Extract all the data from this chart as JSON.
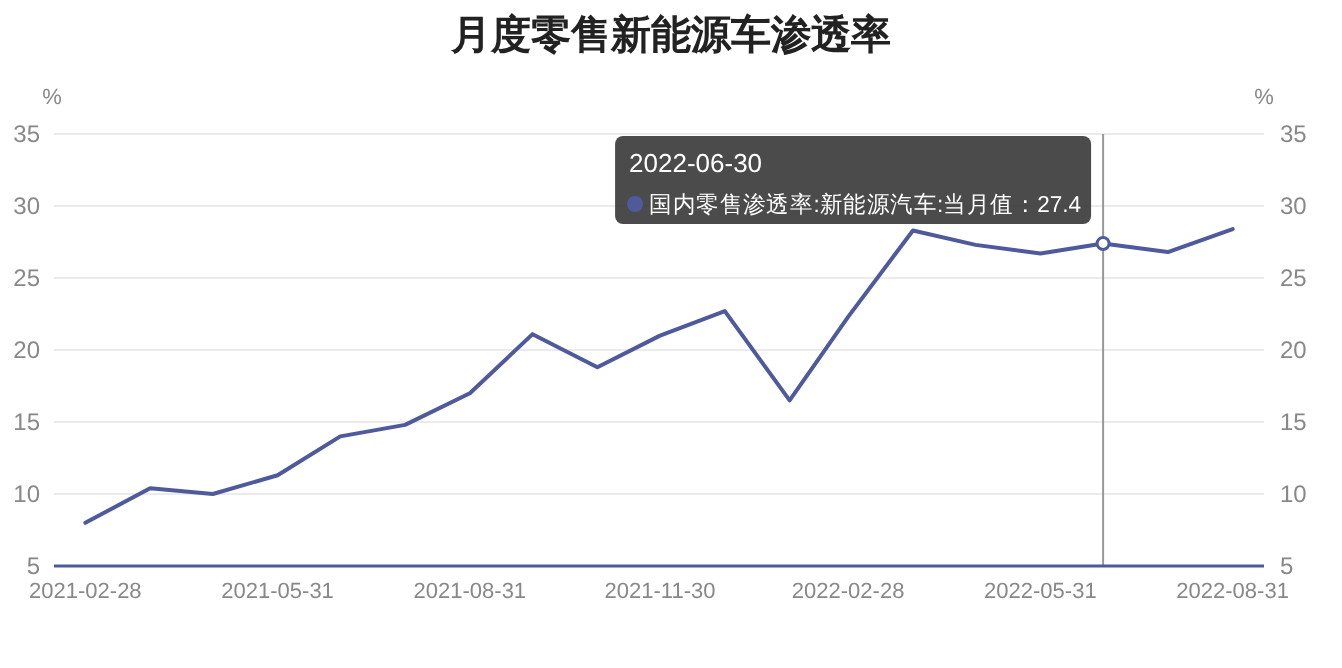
{
  "chart_data": {
    "type": "line",
    "title": "月度零售新能源车渗透率",
    "ylabel": "%",
    "y2label": "%",
    "x": [
      "2021-02-28",
      "2021-03-31",
      "2021-04-30",
      "2021-05-31",
      "2021-06-30",
      "2021-07-31",
      "2021-08-31",
      "2021-09-30",
      "2021-10-31",
      "2021-11-30",
      "2021-12-31",
      "2022-01-31",
      "2022-02-28",
      "2022-03-31",
      "2022-04-30",
      "2022-05-31",
      "2022-06-30",
      "2022-07-31",
      "2022-08-31"
    ],
    "series": [
      {
        "color": "#4e5a9c",
        "values": [
          8.0,
          10.4,
          10.0,
          11.3,
          14.0,
          14.8,
          17.0,
          21.1,
          18.8,
          21.0,
          22.7,
          16.5,
          22.3,
          28.3,
          27.3,
          26.7,
          27.4,
          26.8,
          28.4
        ]
      }
    ],
    "xlim": [
      "2021-02-13",
      "2022-09-15"
    ],
    "xticks": [
      "2021-02-28",
      "2021-05-31",
      "2021-08-31",
      "2021-11-30",
      "2022-02-28",
      "2022-05-31",
      "2022-08-31"
    ],
    "ylim": [
      5,
      35
    ],
    "yticks": [
      5,
      10,
      15,
      20,
      25,
      30,
      35
    ],
    "y2lim": [
      5,
      35
    ],
    "y2ticks": [
      5,
      10,
      15,
      20,
      25,
      30,
      35
    ],
    "grid": "y",
    "marker": "none",
    "line_style": "solid",
    "ref_lines": [
      {
        "axis": "x",
        "value": "2022-06-30",
        "color": "#999999"
      }
    ],
    "annotations": [
      {
        "text": "2022-06-30\n国内零售渗透率:新能源汽车:当月值：27.4",
        "x": "2022-06-30",
        "y": 27.4
      }
    ]
  }
}
